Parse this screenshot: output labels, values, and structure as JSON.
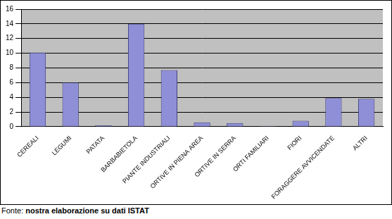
{
  "chart_data": {
    "type": "bar",
    "categories": [
      "CEREALI",
      "LEGUMI",
      "PATATA",
      "BARBABIETOLA",
      "PIANTE INDUSTRIALI",
      "ORTIVE IN PIENA AREA",
      "ORTIVE IN SERRA",
      "ORTI FAMILIARI",
      "FIORI",
      "FORAGGERE AVVICENDATE",
      "ALTRI"
    ],
    "values": [
      10.1,
      6.0,
      0.2,
      14.0,
      7.7,
      0.6,
      0.5,
      0.1,
      0.8,
      3.9,
      3.8
    ],
    "color": "#8f8fd8",
    "ylim": [
      0,
      16
    ],
    "yticks": [
      0,
      2,
      4,
      6,
      8,
      10,
      12,
      14,
      16
    ],
    "grid": true,
    "annotations": [
      {
        "label": "Fonte:",
        "text": "nostra elaborazione su dati ISTAT"
      }
    ]
  }
}
